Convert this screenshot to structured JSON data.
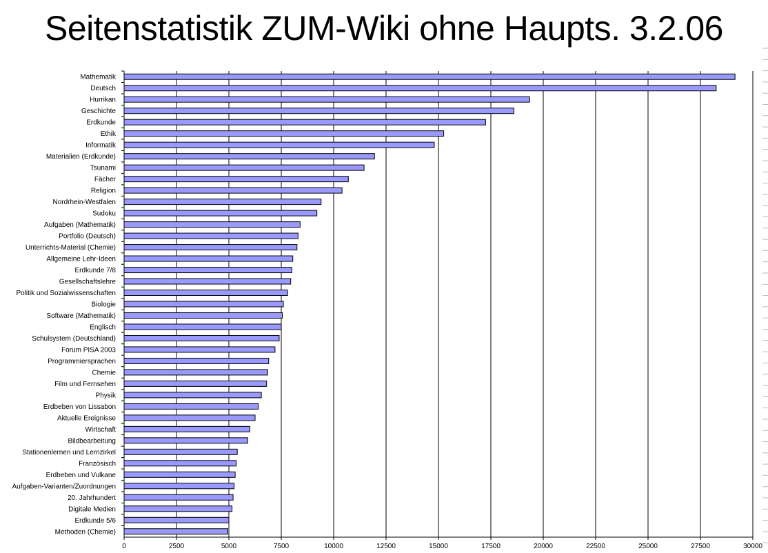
{
  "chart_data": {
    "type": "bar",
    "orientation": "horizontal",
    "title": "Seitenstatistik ZUM-Wiki ohne Haupts. 3.2.06",
    "xlabel": "",
    "ylabel": "",
    "xlim": [
      0,
      30000
    ],
    "x_ticks": [
      "0",
      "2500",
      "5000",
      "7500",
      "10000",
      "12500",
      "15000",
      "17500",
      "20000",
      "22500",
      "25000",
      "27500",
      "30000"
    ],
    "grid": "vertical",
    "bar_color": "#9999ff",
    "categories": [
      "Mathematik",
      "Deutsch",
      "Hurrikan",
      "Geschichte",
      "Erdkunde",
      "Ethik",
      "Informatik",
      "Materialien (Erdkunde)",
      "Tsunami",
      "Fächer",
      "Religion",
      "Nordrhein-Westfalen",
      "Sudoku",
      "Aufgaben (Mathematik)",
      "Portfolio (Deutsch)",
      "Unterrichts-Material (Chemie)",
      "Allgemeine Lehr-Ideen",
      "Erdkunde 7/8",
      "Gesellschaftslehre",
      "Politik und Sozialwissenschaften",
      "Biologie",
      "Software (Mathematik)",
      "Englisch",
      "Schulsystem (Deutschland)",
      "Forum PISA 2003",
      "Programmiersprachen",
      "Chemie",
      "Film und Fernsehen",
      "Physik",
      "Erdbeben von Lissabon",
      "Aktuelle Ereignisse",
      "Wirtschaft",
      "Bildbearbeitung",
      "Stationenlernen und Lernzirkel",
      "Französisch",
      "Erdbeben und Vulkane",
      "Aufgaben-Varianten/Zuordnungen",
      "20. Jahrhundert",
      "Digitale Medien",
      "Erdkunde 5/6",
      "Methoden (Chemie)"
    ],
    "values": [
      29150,
      28250,
      19350,
      18600,
      17250,
      15250,
      14800,
      11950,
      11450,
      10700,
      10400,
      9400,
      9200,
      8400,
      8300,
      8250,
      8050,
      8000,
      7950,
      7800,
      7600,
      7550,
      7500,
      7400,
      7200,
      6900,
      6850,
      6800,
      6550,
      6400,
      6250,
      6000,
      5900,
      5400,
      5350,
      5300,
      5250,
      5200,
      5150,
      5000,
      4950
    ]
  }
}
